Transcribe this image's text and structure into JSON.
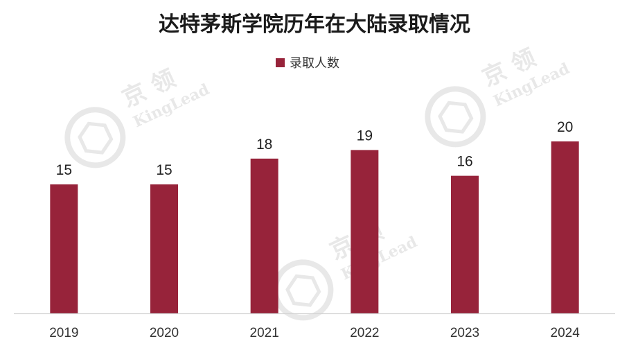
{
  "chart_data": {
    "type": "bar",
    "title": "达特茅斯学院历年在大陆录取情况",
    "categories": [
      "2019",
      "2020",
      "2021",
      "2022",
      "2023",
      "2024"
    ],
    "series": [
      {
        "name": "录取人数",
        "values": [
          15,
          15,
          18,
          19,
          16,
          20
        ],
        "color": "#97233A"
      }
    ],
    "xlabel": "",
    "ylabel": "",
    "ylim": [
      0,
      22
    ],
    "grid": false,
    "legend": "top-center",
    "data_labels": true
  },
  "watermark": {
    "brand_cn": "京 领",
    "brand_en": "KingLead",
    "color": "#e8e8e8"
  }
}
